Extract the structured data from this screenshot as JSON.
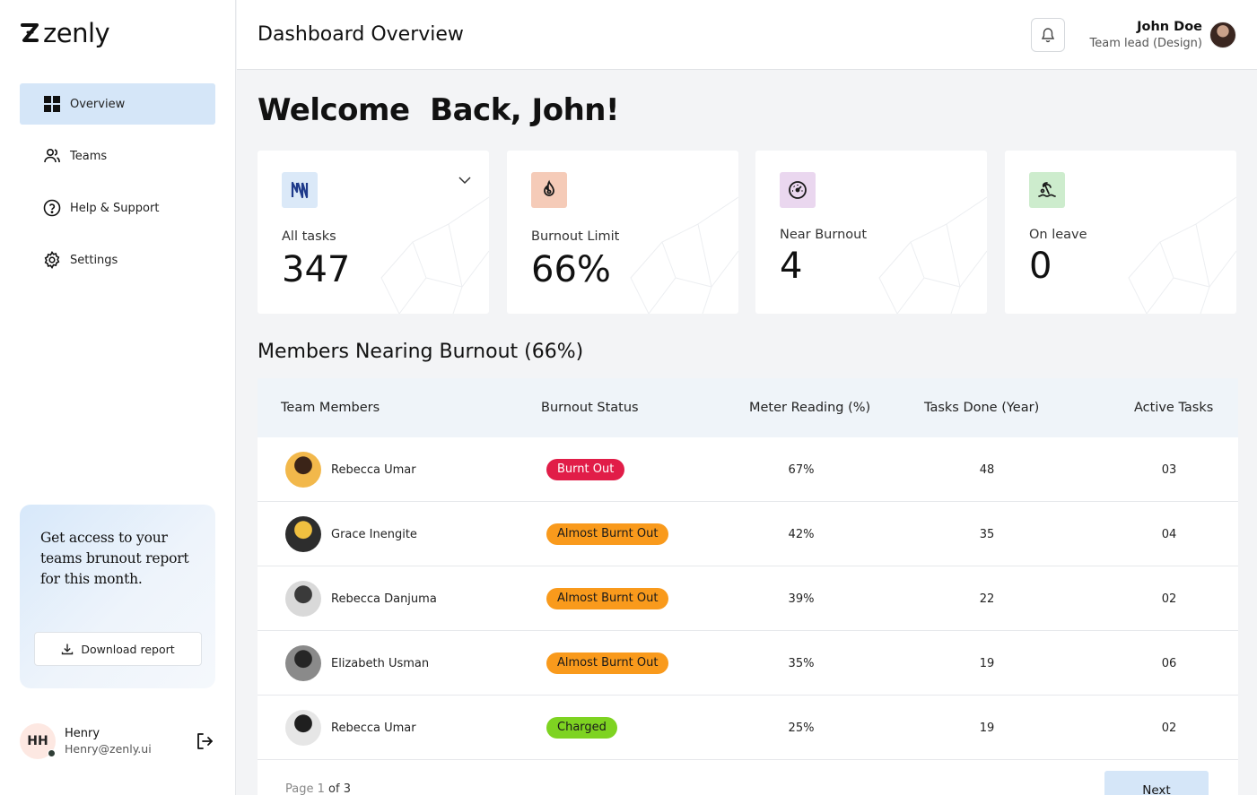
{
  "brand": {
    "name": "zenly"
  },
  "sidebar": {
    "nav": [
      {
        "label": "Overview",
        "icon": "grid-icon",
        "active": true
      },
      {
        "label": "Teams",
        "icon": "users-icon",
        "active": false
      },
      {
        "label": "Help & Support",
        "icon": "help-circle-icon",
        "active": false
      },
      {
        "label": "Settings",
        "icon": "gear-icon",
        "active": false
      }
    ],
    "promo": {
      "text": "Get access to your teams brunout report for this month.",
      "button_label": "Download report"
    },
    "user": {
      "initials": "HH",
      "name": "Henry",
      "email": "Henry@zenly.ui"
    }
  },
  "header": {
    "title": "Dashboard Overview",
    "profile": {
      "name": "John Doe",
      "role": "Team lead (Design)"
    }
  },
  "welcome": "Welcome  Back, John!",
  "stats": [
    {
      "label": "All tasks",
      "value": "347",
      "icon": "tasks-icon",
      "icon_bg": "#dbe9f8",
      "icon_color": "#1e3a8a"
    },
    {
      "label": "Burnout Limit",
      "value": "66%",
      "icon": "flame-icon",
      "icon_bg": "#f5cbb8",
      "icon_color": "#1a1a1a"
    },
    {
      "label": "Near Burnout",
      "value": "4",
      "icon": "gauge-icon",
      "icon_bg": "#ead7ef",
      "icon_color": "#1a1a1a"
    },
    {
      "label": "On leave",
      "value": "0",
      "icon": "beach-icon",
      "icon_bg": "#cdeccd",
      "icon_color": "#1a1a1a"
    }
  ],
  "section_title": "Members Nearing Burnout (66%)",
  "table": {
    "headers": [
      "Team Members",
      "Burnout Status",
      "Meter Reading (%)",
      "Tasks Done (Year)",
      "Active Tasks"
    ],
    "rows": [
      {
        "name": "Rebecca Umar",
        "status": "Burnt Out",
        "status_type": "red",
        "meter": "67%",
        "tasks_done": "48",
        "active": "03",
        "avatar_colors": [
          "#f2b84b",
          "#3b2418"
        ]
      },
      {
        "name": "Grace Inengite",
        "status": "Almost Burnt Out",
        "status_type": "orange",
        "meter": "42%",
        "tasks_done": "35",
        "active": "04",
        "avatar_colors": [
          "#2d2d2d",
          "#f0c040"
        ]
      },
      {
        "name": "Rebecca Danjuma",
        "status": "Almost Burnt Out",
        "status_type": "orange",
        "meter": "39%",
        "tasks_done": "22",
        "active": "02",
        "avatar_colors": [
          "#d9d9d9",
          "#3a3a3a"
        ]
      },
      {
        "name": "Elizabeth Usman",
        "status": "Almost Burnt Out",
        "status_type": "orange",
        "meter": "35%",
        "tasks_done": "19",
        "active": "06",
        "avatar_colors": [
          "#8a8a8a",
          "#262626"
        ]
      },
      {
        "name": "Rebecca Umar",
        "status": "Charged",
        "status_type": "green",
        "meter": "25%",
        "tasks_done": "19",
        "active": "02",
        "avatar_colors": [
          "#e6e6e6",
          "#1f1f1f"
        ]
      }
    ],
    "pagination": {
      "page_word": "Page",
      "current": "1",
      "of_label": "of 3",
      "next_label": "Next"
    }
  }
}
